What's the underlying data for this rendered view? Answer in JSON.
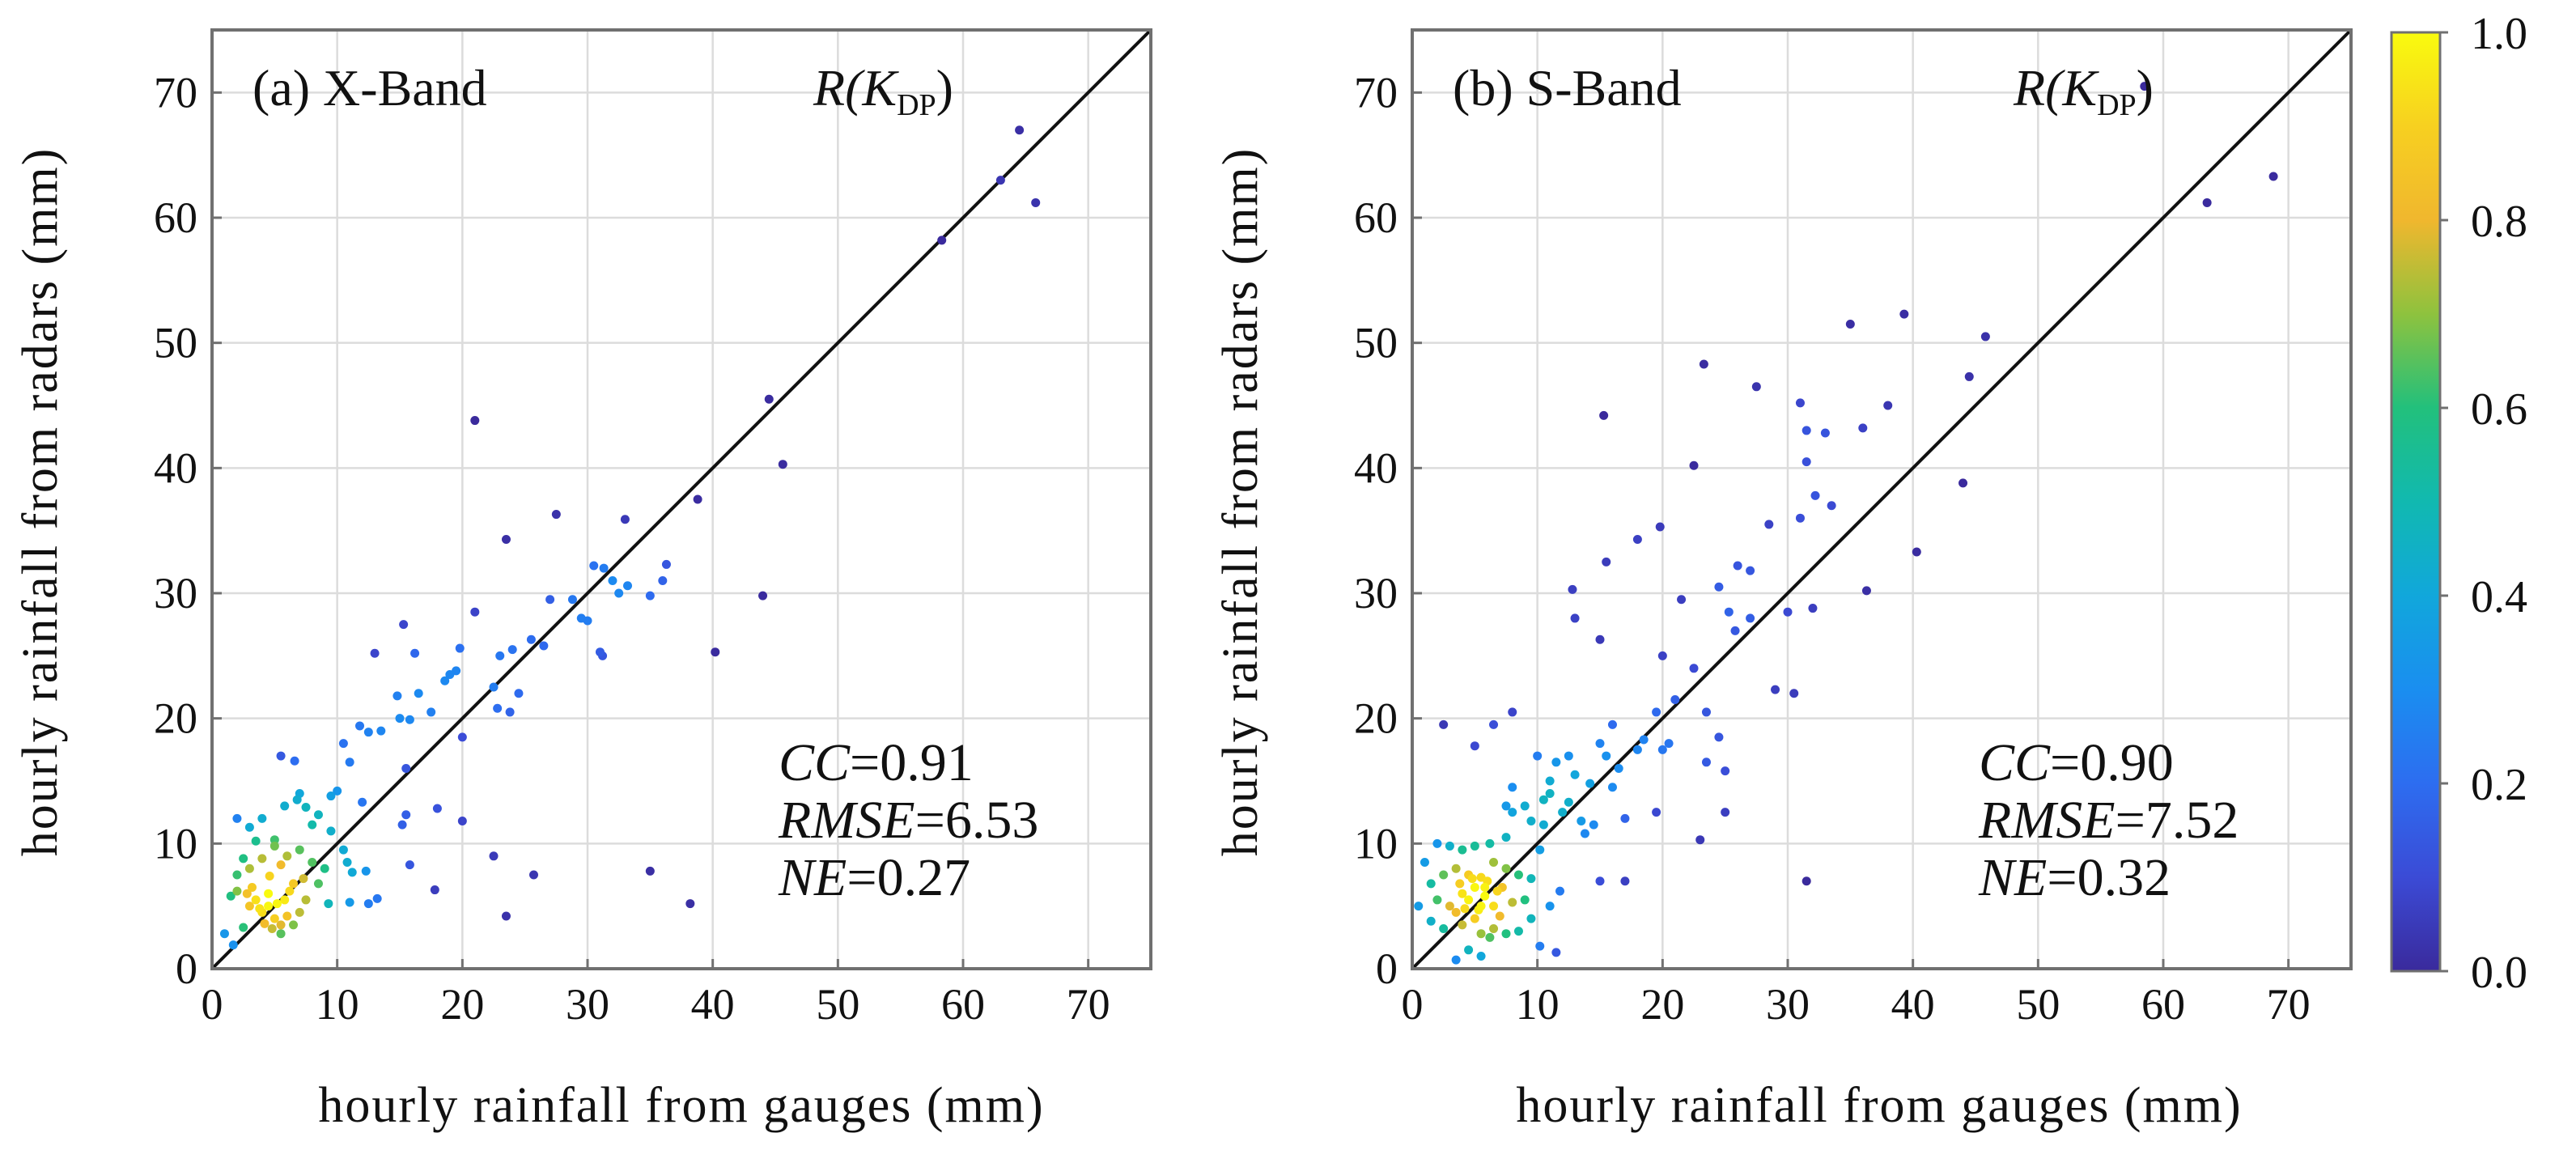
{
  "chart_data": [
    {
      "type": "scatter",
      "panel": "a",
      "title": "(a) X-Band",
      "estimator": {
        "prefix": "R(",
        "var": "K",
        "subscript": "DP",
        "suffix": ")"
      },
      "xlabel": "hourly rainfall from  gauges (mm)",
      "ylabel": "hourly rainfall from radars (mm)",
      "xlim": [
        0,
        75
      ],
      "ylim": [
        0,
        75
      ],
      "xticks": [
        0,
        10,
        20,
        30,
        40,
        50,
        60,
        70
      ],
      "yticks": [
        0,
        10,
        20,
        30,
        40,
        50,
        60,
        70
      ],
      "grid": true,
      "one_to_one_line": true,
      "stats": [
        {
          "name": "CC",
          "value": "=0.91"
        },
        {
          "name": "RMSE",
          "value": "=6.53"
        },
        {
          "name": "NE",
          "value": "=0.27"
        }
      ],
      "points": [
        [
          64.5,
          67.0
        ],
        [
          63.0,
          63.0
        ],
        [
          65.8,
          61.2
        ],
        [
          58.3,
          58.2
        ],
        [
          44.5,
          45.5
        ],
        [
          45.6,
          40.3
        ],
        [
          38.8,
          37.5
        ],
        [
          44.0,
          29.8
        ],
        [
          40.2,
          25.3
        ],
        [
          35.0,
          7.8
        ],
        [
          38.2,
          5.2
        ],
        [
          25.7,
          7.5
        ],
        [
          23.5,
          4.2
        ],
        [
          22.5,
          9.0
        ],
        [
          17.8,
          6.3
        ],
        [
          21.0,
          43.8
        ],
        [
          27.5,
          36.3
        ],
        [
          33.0,
          35.9
        ],
        [
          23.5,
          34.3
        ],
        [
          36.3,
          32.3
        ],
        [
          30.5,
          32.2
        ],
        [
          31.3,
          32.0
        ],
        [
          31.0,
          25.3
        ],
        [
          31.2,
          25.0
        ],
        [
          20.0,
          11.8
        ],
        [
          15.2,
          11.5
        ],
        [
          15.5,
          12.3
        ],
        [
          15.8,
          8.3
        ],
        [
          18.0,
          12.8
        ],
        [
          12.5,
          5.2
        ],
        [
          13.2,
          5.6
        ],
        [
          32.0,
          31.0
        ],
        [
          32.5,
          30.0
        ],
        [
          36.0,
          31.0
        ],
        [
          35.0,
          29.8
        ],
        [
          33.2,
          30.6
        ],
        [
          29.5,
          28.0
        ],
        [
          28.8,
          29.5
        ],
        [
          30.0,
          27.8
        ],
        [
          27.0,
          29.5
        ],
        [
          25.5,
          26.3
        ],
        [
          26.5,
          25.8
        ],
        [
          24.0,
          25.5
        ],
        [
          23.0,
          25.0
        ],
        [
          22.5,
          22.5
        ],
        [
          24.5,
          22.0
        ],
        [
          23.8,
          20.5
        ],
        [
          22.8,
          20.8
        ],
        [
          20.0,
          18.5
        ],
        [
          19.0,
          23.5
        ],
        [
          19.5,
          23.8
        ],
        [
          18.6,
          23.0
        ],
        [
          21.0,
          28.5
        ],
        [
          15.3,
          27.5
        ],
        [
          16.2,
          25.2
        ],
        [
          13.0,
          25.2
        ],
        [
          19.8,
          25.6
        ],
        [
          16.5,
          22.0
        ],
        [
          14.8,
          21.8
        ],
        [
          15.0,
          20.0
        ],
        [
          15.8,
          19.9
        ],
        [
          17.5,
          20.5
        ],
        [
          15.5,
          16.0
        ],
        [
          13.5,
          19.0
        ],
        [
          11.8,
          19.4
        ],
        [
          12.5,
          18.9
        ],
        [
          10.5,
          18.0
        ],
        [
          11.0,
          16.5
        ],
        [
          10.0,
          14.2
        ],
        [
          9.5,
          13.8
        ],
        [
          12.0,
          13.3
        ],
        [
          8.5,
          12.3
        ],
        [
          7.5,
          12.9
        ],
        [
          6.8,
          13.5
        ],
        [
          5.8,
          13.0
        ],
        [
          7.0,
          14.0
        ],
        [
          5.5,
          17.0
        ],
        [
          6.6,
          16.6
        ],
        [
          8.0,
          11.5
        ],
        [
          9.5,
          11.0
        ],
        [
          10.5,
          9.5
        ],
        [
          10.8,
          8.5
        ],
        [
          11.2,
          7.7
        ],
        [
          12.3,
          7.8
        ],
        [
          9.3,
          5.2
        ],
        [
          11.0,
          5.3
        ],
        [
          2.0,
          12.0
        ],
        [
          3.0,
          11.3
        ],
        [
          4.0,
          12.0
        ],
        [
          3.5,
          10.2
        ],
        [
          5.0,
          9.8
        ],
        [
          5.0,
          10.3
        ],
        [
          6.0,
          9.0
        ],
        [
          7.0,
          9.5
        ],
        [
          4.0,
          8.8
        ],
        [
          3.0,
          8.0
        ],
        [
          2.0,
          7.5
        ],
        [
          2.5,
          8.8
        ],
        [
          8.5,
          6.8
        ],
        [
          8.0,
          8.5
        ],
        [
          9.0,
          8.0
        ],
        [
          5.5,
          8.3
        ],
        [
          4.6,
          7.4
        ],
        [
          7.3,
          7.2
        ],
        [
          6.5,
          6.8
        ],
        [
          2.0,
          6.2
        ],
        [
          1.5,
          5.8
        ],
        [
          2.8,
          6.0
        ],
        [
          1.0,
          2.8
        ],
        [
          1.7,
          1.9
        ],
        [
          2.5,
          3.3
        ],
        [
          3.0,
          5.0
        ],
        [
          3.5,
          5.5
        ],
        [
          4.0,
          4.5
        ],
        [
          4.5,
          5.0
        ],
        [
          5.0,
          4.0
        ],
        [
          5.5,
          3.5
        ],
        [
          4.2,
          3.6
        ],
        [
          6.0,
          4.2
        ],
        [
          5.8,
          5.5
        ],
        [
          4.5,
          6.0
        ],
        [
          3.8,
          4.8
        ],
        [
          5.2,
          5.2
        ],
        [
          4.8,
          3.2
        ],
        [
          6.5,
          3.5
        ],
        [
          7.0,
          4.5
        ],
        [
          3.2,
          6.5
        ],
        [
          5.5,
          2.8
        ],
        [
          6.2,
          6.2
        ],
        [
          7.5,
          5.5
        ]
      ]
    },
    {
      "type": "scatter",
      "panel": "b",
      "title": "(b) S-Band",
      "estimator": {
        "prefix": "R(",
        "var": "K",
        "subscript": "DP",
        "suffix": ")"
      },
      "xlabel": "hourly rainfall from  gauges (mm)",
      "ylabel": "hourly rainfall from radars (mm)",
      "xlim": [
        0,
        75
      ],
      "ylim": [
        0,
        75
      ],
      "xticks": [
        0,
        10,
        20,
        30,
        40,
        50,
        60,
        70
      ],
      "yticks": [
        0,
        10,
        20,
        30,
        40,
        50,
        60,
        70
      ],
      "grid": true,
      "one_to_one_line": true,
      "stats": [
        {
          "name": "CC",
          "value": "=0.90"
        },
        {
          "name": "RMSE",
          "value": "=7.52"
        },
        {
          "name": "NE",
          "value": "=0.32"
        }
      ],
      "points": [
        [
          58.5,
          70.5
        ],
        [
          68.8,
          63.3
        ],
        [
          63.5,
          61.2
        ],
        [
          35.0,
          51.5
        ],
        [
          39.3,
          52.3
        ],
        [
          45.8,
          50.5
        ],
        [
          44.5,
          47.3
        ],
        [
          44.0,
          38.8
        ],
        [
          40.3,
          33.3
        ],
        [
          36.3,
          30.2
        ],
        [
          38.0,
          45.0
        ],
        [
          36.0,
          43.2
        ],
        [
          33.0,
          42.8
        ],
        [
          31.5,
          43.0
        ],
        [
          31.0,
          45.2
        ],
        [
          27.5,
          46.5
        ],
        [
          23.3,
          48.3
        ],
        [
          15.3,
          44.2
        ],
        [
          22.5,
          40.2
        ],
        [
          19.8,
          35.3
        ],
        [
          18.0,
          34.3
        ],
        [
          15.5,
          32.5
        ],
        [
          12.8,
          30.3
        ],
        [
          15.0,
          26.3
        ],
        [
          13.0,
          28.0
        ],
        [
          21.5,
          29.5
        ],
        [
          28.5,
          35.5
        ],
        [
          31.0,
          36.0
        ],
        [
          32.2,
          37.8
        ],
        [
          33.5,
          37.0
        ],
        [
          31.5,
          40.5
        ],
        [
          32.0,
          28.8
        ],
        [
          30.0,
          28.5
        ],
        [
          31.5,
          7.0
        ],
        [
          29.0,
          22.3
        ],
        [
          30.5,
          22.0
        ],
        [
          26.0,
          32.2
        ],
        [
          27.0,
          31.8
        ],
        [
          24.5,
          30.5
        ],
        [
          25.3,
          28.5
        ],
        [
          25.8,
          27.0
        ],
        [
          27.0,
          28.0
        ],
        [
          23.5,
          20.5
        ],
        [
          24.5,
          18.5
        ],
        [
          25.0,
          15.8
        ],
        [
          23.5,
          16.5
        ],
        [
          23.0,
          10.3
        ],
        [
          25.0,
          12.5
        ],
        [
          22.5,
          24.0
        ],
        [
          20.0,
          25.0
        ],
        [
          21.0,
          21.5
        ],
        [
          19.5,
          20.5
        ],
        [
          18.5,
          18.3
        ],
        [
          18.0,
          17.5
        ],
        [
          20.0,
          17.5
        ],
        [
          20.5,
          18.0
        ],
        [
          19.5,
          12.5
        ],
        [
          16.0,
          14.5
        ],
        [
          16.5,
          16.0
        ],
        [
          17.0,
          12.0
        ],
        [
          15.5,
          17.0
        ],
        [
          15.0,
          18.0
        ],
        [
          16.0,
          19.5
        ],
        [
          14.2,
          14.8
        ],
        [
          13.0,
          15.5
        ],
        [
          12.5,
          13.3
        ],
        [
          11.0,
          14.0
        ],
        [
          12.0,
          12.5
        ],
        [
          13.5,
          11.8
        ],
        [
          14.5,
          11.5
        ],
        [
          13.8,
          10.8
        ],
        [
          10.5,
          11.5
        ],
        [
          9.5,
          11.8
        ],
        [
          8.0,
          12.5
        ],
        [
          7.5,
          13.0
        ],
        [
          8.0,
          14.5
        ],
        [
          9.0,
          13.0
        ],
        [
          10.5,
          13.5
        ],
        [
          11.0,
          15.0
        ],
        [
          11.5,
          16.5
        ],
        [
          12.5,
          17.0
        ],
        [
          10.0,
          17.0
        ],
        [
          8.0,
          20.5
        ],
        [
          6.5,
          19.5
        ],
        [
          5.0,
          17.8
        ],
        [
          2.5,
          19.5
        ],
        [
          15.0,
          7.0
        ],
        [
          17.0,
          7.0
        ],
        [
          11.8,
          6.2
        ],
        [
          11.0,
          5.0
        ],
        [
          11.5,
          1.3
        ],
        [
          10.2,
          1.8
        ],
        [
          9.5,
          4.0
        ],
        [
          10.2,
          9.5
        ],
        [
          7.5,
          10.5
        ],
        [
          6.2,
          10.0
        ],
        [
          5.0,
          9.8
        ],
        [
          4.0,
          9.5
        ],
        [
          3.0,
          9.8
        ],
        [
          2.0,
          10.0
        ],
        [
          1.0,
          8.5
        ],
        [
          1.5,
          6.8
        ],
        [
          2.5,
          7.5
        ],
        [
          3.5,
          8.0
        ],
        [
          4.5,
          7.5
        ],
        [
          5.5,
          7.3
        ],
        [
          6.5,
          8.5
        ],
        [
          7.5,
          8.0
        ],
        [
          8.5,
          7.5
        ],
        [
          9.5,
          7.2
        ],
        [
          2.0,
          5.5
        ],
        [
          3.0,
          5.0
        ],
        [
          0.5,
          5.0
        ],
        [
          1.5,
          3.8
        ],
        [
          2.5,
          3.2
        ],
        [
          3.5,
          4.5
        ],
        [
          4.0,
          3.5
        ],
        [
          5.0,
          4.0
        ],
        [
          5.5,
          2.8
        ],
        [
          4.5,
          1.5
        ],
        [
          3.5,
          0.7
        ],
        [
          5.5,
          1.0
        ],
        [
          6.5,
          3.2
        ],
        [
          7.0,
          4.2
        ],
        [
          6.2,
          2.5
        ],
        [
          7.5,
          2.8
        ],
        [
          8.5,
          3.0
        ],
        [
          8.0,
          5.3
        ],
        [
          9.0,
          5.5
        ],
        [
          4.0,
          6.0
        ],
        [
          5.0,
          6.5
        ],
        [
          5.8,
          5.8
        ],
        [
          6.8,
          6.2
        ],
        [
          4.5,
          5.5
        ],
        [
          5.5,
          5.0
        ],
        [
          6.0,
          7.0
        ],
        [
          4.8,
          7.2
        ],
        [
          3.8,
          6.8
        ],
        [
          5.3,
          4.7
        ],
        [
          6.5,
          5.0
        ],
        [
          7.2,
          6.5
        ],
        [
          4.2,
          4.8
        ],
        [
          5.8,
          6.5
        ]
      ]
    }
  ],
  "colorbar": {
    "min": 0.0,
    "max": 1.0,
    "ticks": [
      {
        "value": 1.0,
        "label": "1.0"
      },
      {
        "value": 0.8,
        "label": "0.8"
      },
      {
        "value": 0.6,
        "label": "0.6"
      },
      {
        "value": 0.4,
        "label": "0.4"
      },
      {
        "value": 0.2,
        "label": "0.2"
      },
      {
        "value": 0.0,
        "label": "0.0"
      }
    ],
    "stops": [
      {
        "value": 0.0,
        "color": "#3a2a9c"
      },
      {
        "value": 0.1,
        "color": "#3b4bd6"
      },
      {
        "value": 0.2,
        "color": "#2d6df0"
      },
      {
        "value": 0.3,
        "color": "#1a8ef0"
      },
      {
        "value": 0.4,
        "color": "#11a7db"
      },
      {
        "value": 0.5,
        "color": "#11b9b0"
      },
      {
        "value": 0.6,
        "color": "#22c07c"
      },
      {
        "value": 0.7,
        "color": "#8ec23e"
      },
      {
        "value": 0.8,
        "color": "#f0b72e"
      },
      {
        "value": 0.9,
        "color": "#f7d020"
      },
      {
        "value": 1.0,
        "color": "#f9fb0e"
      }
    ]
  }
}
